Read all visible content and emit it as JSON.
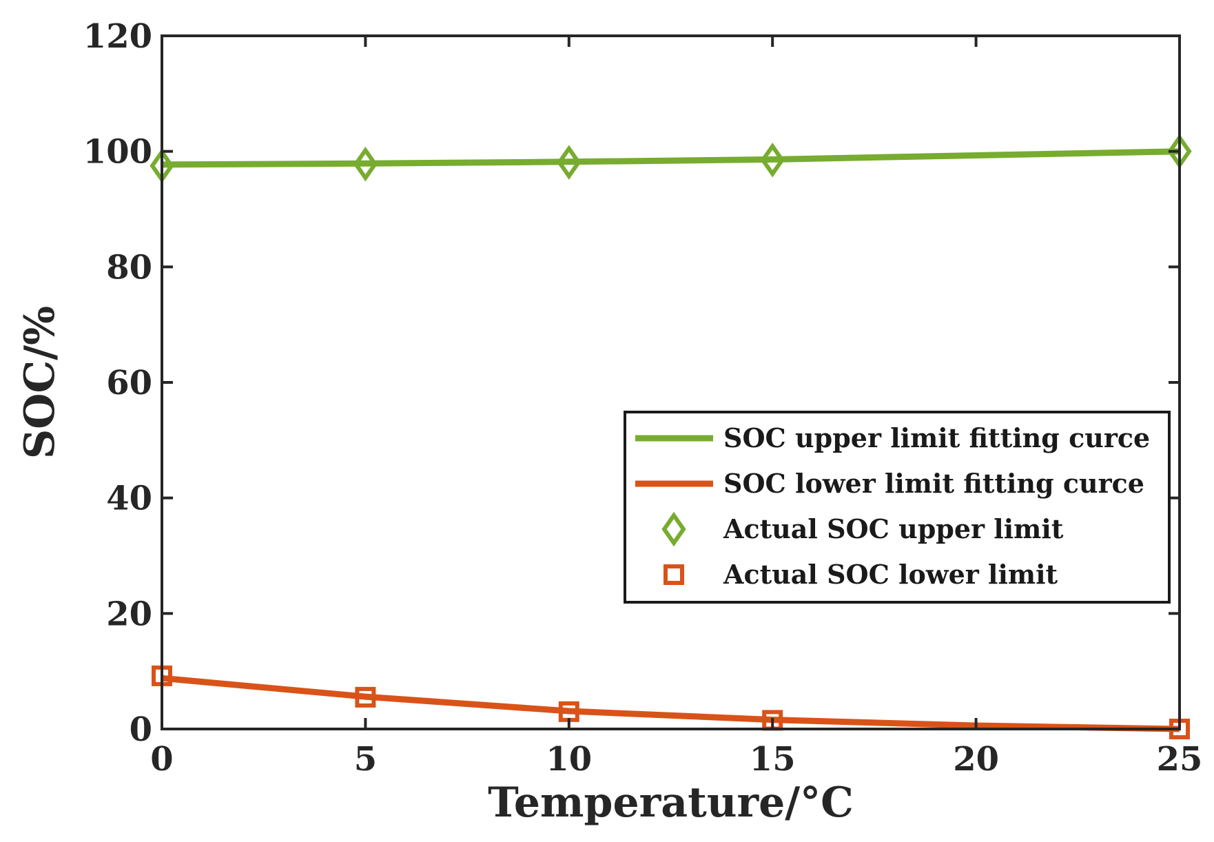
{
  "chart_data": {
    "type": "line",
    "title": "",
    "xlabel": "Temperature/°C",
    "ylabel": "SOC/%",
    "xlim": [
      0,
      25
    ],
    "ylim": [
      0,
      120
    ],
    "xticks": [
      0,
      5,
      10,
      15,
      20,
      25
    ],
    "yticks": [
      0,
      20,
      40,
      60,
      80,
      100,
      120
    ],
    "grid": false,
    "legend_position": "center-right",
    "series": [
      {
        "name": "SOC upper limit fitting curce",
        "kind": "line",
        "color": "#77AC30",
        "x": [
          0,
          5,
          10,
          15,
          20,
          25
        ],
        "y": [
          97.7,
          97.9,
          98.2,
          98.6,
          99.3,
          100.0
        ]
      },
      {
        "name": "SOC lower limit fitting curce",
        "kind": "line",
        "color": "#D95319",
        "x": [
          0,
          5,
          10,
          15,
          20,
          25
        ],
        "y": [
          8.8,
          5.6,
          3.1,
          1.6,
          0.6,
          0.0
        ]
      },
      {
        "name": "Actual SOC upper limit",
        "kind": "marker",
        "marker": "diamond",
        "color": "#77AC30",
        "x": [
          0,
          5,
          10,
          15,
          25
        ],
        "y": [
          97.5,
          97.8,
          98.1,
          98.5,
          100.0
        ]
      },
      {
        "name": "Actual SOC lower limit",
        "kind": "marker",
        "marker": "square",
        "color": "#D95319",
        "x": [
          0,
          5,
          10,
          15,
          25
        ],
        "y": [
          9.2,
          5.5,
          3.0,
          1.5,
          0.0
        ]
      }
    ]
  }
}
